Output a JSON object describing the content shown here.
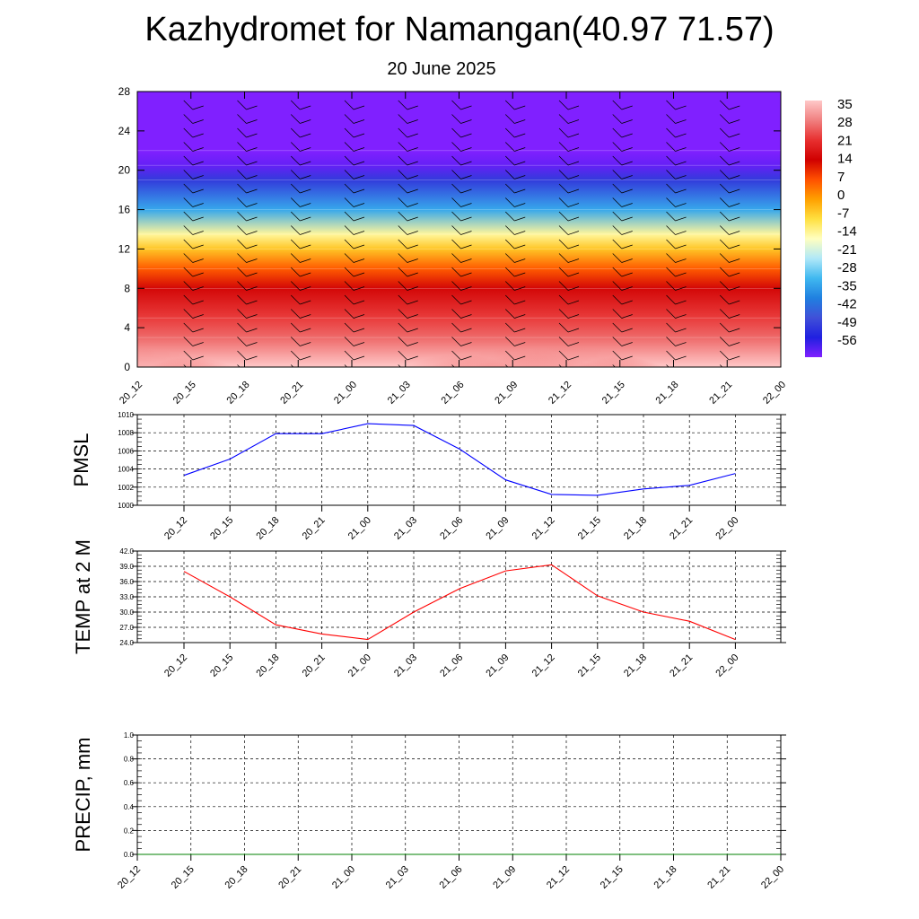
{
  "title": "Kazhydromet for Namangan(40.97 71.57)",
  "subtitle": "20 June 2025",
  "time_labels": [
    "20_12",
    "20_15",
    "20_18",
    "20_21",
    "21_00",
    "21_03",
    "21_06",
    "21_09",
    "21_12",
    "21_15",
    "21_18",
    "21_21",
    "22_00"
  ],
  "chart_data": [
    {
      "id": "cross-section",
      "type": "heatmap",
      "x_categories": [
        "20_12",
        "20_15",
        "20_18",
        "20_21",
        "21_00",
        "21_03",
        "21_06",
        "21_09",
        "21_12",
        "21_15",
        "21_18",
        "21_21",
        "22_00"
      ],
      "y_ticks": [
        0,
        4,
        8,
        12,
        16,
        20,
        24,
        28
      ],
      "ylim": [
        0,
        28
      ],
      "colorbar_labels": [
        "35",
        "28",
        "21",
        "14",
        "7",
        "0",
        "-7",
        "-14",
        "-21",
        "-28",
        "-35",
        "-42",
        "-49",
        "-56"
      ],
      "colorbar_colors": [
        "#ffc8c8",
        "#f08080",
        "#e83030",
        "#d00000",
        "#ff5000",
        "#ffa000",
        "#ffe040",
        "#ffffc0",
        "#b0e8f8",
        "#40b8f0",
        "#2080e0",
        "#4050d8",
        "#2020e0",
        "#8020ff"
      ],
      "surface_temperature": [
        38,
        33,
        27.5,
        25.7,
        24.6,
        30,
        34.6,
        38.1,
        39.3,
        33.2,
        30,
        28.2,
        24.6
      ],
      "levels": [
        {
          "y": 0,
          "value": 35
        },
        {
          "y": 3,
          "value": 26
        },
        {
          "y": 5,
          "value": 22
        },
        {
          "y": 8,
          "value": 15
        },
        {
          "y": 10,
          "value": 6
        },
        {
          "y": 12,
          "value": -4
        },
        {
          "y": 13.5,
          "value": -12
        },
        {
          "y": 16,
          "value": -30
        },
        {
          "y": 19,
          "value": -45
        },
        {
          "y": 20.5,
          "value": -54
        },
        {
          "y": 22,
          "value": -58
        },
        {
          "y": 28,
          "value": -62
        }
      ]
    },
    {
      "id": "pmsl",
      "type": "line",
      "ylabel": "PMSL",
      "x": [
        "20_12",
        "20_15",
        "20_18",
        "20_21",
        "21_00",
        "21_03",
        "21_06",
        "21_09",
        "21_12",
        "21_15",
        "21_18",
        "21_21",
        "22_00"
      ],
      "series": [
        {
          "values": [
            1003.3,
            1005.1,
            1007.9,
            1007.9,
            1009.0,
            1008.8,
            1006.2,
            1002.8,
            1001.2,
            1001.1,
            1001.8,
            1002.2,
            1003.5
          ],
          "color": "#0000ff"
        }
      ],
      "ylim": [
        1000,
        1010
      ],
      "y_ticks": [
        "1000",
        "1002",
        "1004",
        "1006",
        "1008",
        "1010"
      ]
    },
    {
      "id": "temp2m",
      "type": "line",
      "ylabel": "TEMP at 2 M",
      "x": [
        "20_12",
        "20_15",
        "20_18",
        "20_21",
        "21_00",
        "21_03",
        "21_06",
        "21_09",
        "21_12",
        "21_15",
        "21_18",
        "21_21",
        "22_00"
      ],
      "series": [
        {
          "values": [
            38.0,
            33.0,
            27.5,
            25.7,
            24.6,
            30.0,
            34.6,
            38.1,
            39.3,
            33.2,
            30.0,
            28.2,
            24.6
          ],
          "color": "#ff0000"
        }
      ],
      "ylim": [
        24,
        42
      ],
      "y_ticks": [
        "24.0",
        "27.0",
        "30.0",
        "33.0",
        "36.0",
        "39.0",
        "42.0"
      ]
    },
    {
      "id": "precip",
      "type": "line",
      "ylabel": "PRECIP, mm",
      "x": [
        "20_12",
        "20_15",
        "20_18",
        "20_21",
        "21_00",
        "21_03",
        "21_06",
        "21_09",
        "21_12",
        "21_15",
        "21_18",
        "21_21",
        "22_00"
      ],
      "series": [
        {
          "values": [
            0,
            0,
            0,
            0,
            0,
            0,
            0,
            0,
            0,
            0,
            0,
            0,
            0
          ],
          "color": "#008000"
        }
      ],
      "ylim": [
        0,
        1
      ],
      "y_ticks": [
        "0.0",
        "0.2",
        "0.4",
        "0.6",
        "0.8",
        "1.0"
      ]
    }
  ]
}
